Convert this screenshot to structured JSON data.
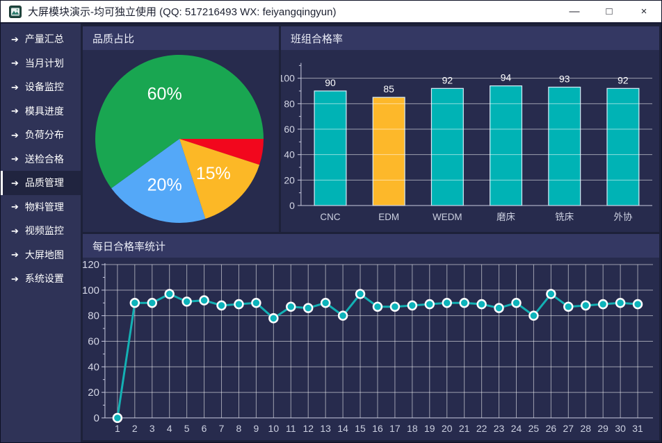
{
  "window": {
    "title": "大屏模块演示-均可独立使用 (QQ: 517216493  WX: feiyangqingyun)",
    "controls": {
      "minimize": "—",
      "maximize": "□",
      "close": "×"
    }
  },
  "sidebar": {
    "arrow_icon": "➔",
    "items": [
      {
        "label": "产量汇总",
        "active": false
      },
      {
        "label": "当月计划",
        "active": false
      },
      {
        "label": "设备监控",
        "active": false
      },
      {
        "label": "模具进度",
        "active": false
      },
      {
        "label": "负荷分布",
        "active": false
      },
      {
        "label": "送检合格",
        "active": false
      },
      {
        "label": "品质管理",
        "active": true
      },
      {
        "label": "物料管理",
        "active": false
      },
      {
        "label": "视频监控",
        "active": false
      },
      {
        "label": "大屏地图",
        "active": false
      },
      {
        "label": "系统设置",
        "active": false
      }
    ]
  },
  "colors": {
    "panel_body": "#272b4d",
    "panel_header": "#343863",
    "grid": "rgba(255,255,255,0.55)",
    "axis": "#c9cbe0",
    "axis_label": "#d5d7e6",
    "category_label": "#ccd0e0",
    "value_label": "#ffffff",
    "teal": "#00b3b5",
    "yellow": "#fdb82a",
    "bar_stroke": "#d8eef8"
  },
  "chart_data": [
    {
      "type": "pie",
      "title": "品质占比",
      "slices": [
        {
          "name": "red",
          "value": 5,
          "label": "",
          "color": "#f2071d"
        },
        {
          "name": "orange",
          "value": 15,
          "label": "15%",
          "color": "#fcb826"
        },
        {
          "name": "blue",
          "value": 20,
          "label": "20%",
          "color": "#54a8f8"
        },
        {
          "name": "green",
          "value": 60,
          "label": "60%",
          "color": "#19a651"
        }
      ],
      "start_angle_deg_clockwise_from_east": 0,
      "label_color": "#ffffff",
      "legend": "none"
    },
    {
      "type": "bar",
      "title": "班组合格率",
      "categories": [
        "CNC",
        "EDM",
        "WEDM",
        "磨床",
        "铣床",
        "外协"
      ],
      "values": [
        90,
        85,
        92,
        94,
        93,
        92
      ],
      "bar_colors": [
        "#00b3b5",
        "#fdb82a",
        "#00b3b5",
        "#00b3b5",
        "#00b3b5",
        "#00b3b5"
      ],
      "yticks": [
        0,
        20,
        40,
        60,
        80,
        100
      ],
      "ylim": [
        0,
        112
      ],
      "grid": true,
      "value_labels": true,
      "xlabel": "",
      "ylabel": ""
    },
    {
      "type": "line",
      "title": "每日合格率统计",
      "x": [
        1,
        2,
        3,
        4,
        5,
        6,
        7,
        8,
        9,
        10,
        11,
        12,
        13,
        14,
        15,
        16,
        17,
        18,
        19,
        20,
        21,
        22,
        23,
        24,
        25,
        26,
        27,
        28,
        29,
        30,
        31
      ],
      "values": [
        0,
        90,
        90,
        97,
        91,
        92,
        88,
        89,
        90,
        78,
        87,
        86,
        90,
        80,
        97,
        87,
        87,
        88,
        89,
        90,
        90,
        89,
        86,
        90,
        80,
        97,
        87,
        88,
        89,
        90,
        89
      ],
      "yticks": [
        0,
        20,
        40,
        60,
        80,
        100,
        120
      ],
      "ylim": [
        0,
        120
      ],
      "grid": true,
      "line_color": "#14b1b4",
      "marker_fill": "#0db3ba",
      "marker_stroke": "#ffffff",
      "xlabel": "",
      "ylabel": ""
    }
  ]
}
